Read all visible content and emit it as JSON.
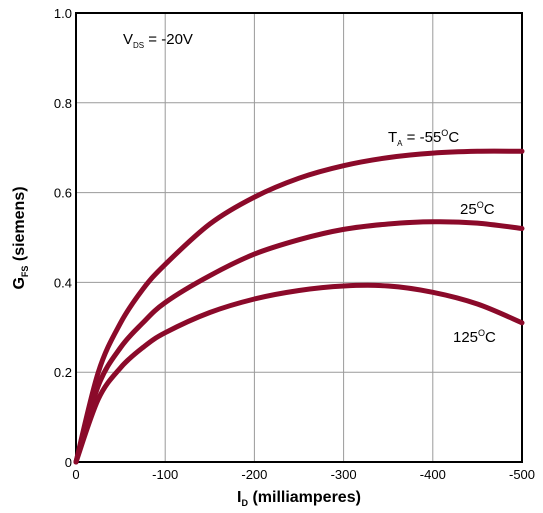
{
  "chart_data": {
    "type": "line",
    "title": "",
    "xlabel": {
      "main": "I",
      "sub": "D",
      "rest": " (milliamperes)"
    },
    "ylabel": {
      "main": "G",
      "sub": "FS",
      "rest": " (siemens)"
    },
    "xlim": [
      0,
      -500
    ],
    "ylim": [
      0,
      1.0
    ],
    "x_ticks": [
      0,
      -100,
      -200,
      -300,
      -400,
      -500
    ],
    "x_tick_labels": [
      "0",
      "-100",
      "-200",
      "-300",
      "-400",
      "-500"
    ],
    "y_ticks": [
      0,
      0.2,
      0.4,
      0.6,
      0.8,
      1.0
    ],
    "y_tick_labels": [
      "0",
      "0.2",
      "0.4",
      "0.6",
      "0.8",
      "1.0"
    ],
    "grid": true,
    "line_color": "#8b0a2a",
    "condition": {
      "main": "V",
      "sub": "DS",
      "rest": " = -20V"
    },
    "series": [
      {
        "name": "-55°C",
        "label": {
          "prefix_main": "T",
          "prefix_sub": "A",
          "prefix_rest": " = -55",
          "sup": "O",
          "suffix": "C"
        },
        "x": [
          0,
          -25,
          -50,
          -75,
          -100,
          -150,
          -200,
          -250,
          -300,
          -350,
          -400,
          -450,
          -500
        ],
        "y": [
          0,
          0.2,
          0.31,
          0.385,
          0.44,
          0.53,
          0.59,
          0.632,
          0.66,
          0.678,
          0.688,
          0.692,
          0.692
        ]
      },
      {
        "name": "25°C",
        "label": {
          "prefix_main": "",
          "prefix_sub": "",
          "prefix_rest": "25",
          "sup": "O",
          "suffix": "C"
        },
        "x": [
          0,
          -25,
          -50,
          -75,
          -100,
          -150,
          -200,
          -250,
          -300,
          -350,
          -400,
          -450,
          -500
        ],
        "y": [
          0,
          0.17,
          0.255,
          0.31,
          0.355,
          0.415,
          0.463,
          0.495,
          0.518,
          0.53,
          0.535,
          0.532,
          0.52
        ]
      },
      {
        "name": "125°C",
        "label": {
          "prefix_main": "",
          "prefix_sub": "",
          "prefix_rest": "125",
          "sup": "O",
          "suffix": "C"
        },
        "x": [
          0,
          -25,
          -50,
          -75,
          -100,
          -150,
          -200,
          -250,
          -300,
          -350,
          -400,
          -450,
          -500
        ],
        "y": [
          0,
          0.14,
          0.21,
          0.255,
          0.288,
          0.333,
          0.363,
          0.382,
          0.392,
          0.392,
          0.378,
          0.352,
          0.31
        ]
      }
    ]
  }
}
